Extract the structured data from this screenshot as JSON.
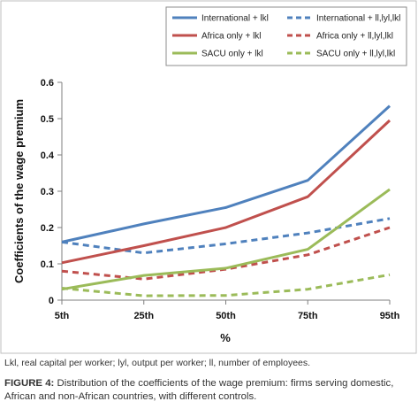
{
  "chart_data": {
    "type": "line",
    "title": "",
    "xlabel": "%",
    "ylabel": "Coefficients of the wage premium",
    "categories": [
      "5th",
      "25th",
      "50th",
      "75th",
      "95th"
    ],
    "ylim": [
      0,
      0.6
    ],
    "yticks": [
      "0",
      "0.1",
      "0.2",
      "0.3",
      "0.4",
      "0.5",
      "0.6"
    ],
    "ytick_values": [
      0,
      0.1,
      0.2,
      0.3,
      0.4,
      0.5,
      0.6
    ],
    "grid": false,
    "legend_position": "top-right",
    "series": [
      {
        "name": "International + lkl",
        "color": "#4f81bd",
        "dashed": false,
        "values": [
          0.16,
          0.21,
          0.255,
          0.33,
          0.535
        ]
      },
      {
        "name": "International + ll,lyl,lkl",
        "color": "#4f81bd",
        "dashed": true,
        "values": [
          0.16,
          0.13,
          0.155,
          0.185,
          0.225
        ]
      },
      {
        "name": "Africa only + lkl",
        "color": "#c0504d",
        "dashed": false,
        "values": [
          0.103,
          0.15,
          0.2,
          0.285,
          0.495
        ]
      },
      {
        "name": "Africa only + ll,lyl,lkl",
        "color": "#c0504d",
        "dashed": true,
        "values": [
          0.08,
          0.058,
          0.085,
          0.125,
          0.2
        ]
      },
      {
        "name": "SACU only + lkl",
        "color": "#9bbb59",
        "dashed": false,
        "values": [
          0.03,
          0.068,
          0.088,
          0.14,
          0.305
        ]
      },
      {
        "name": "SACU only + ll,lyl,lkl",
        "color": "#9bbb59",
        "dashed": true,
        "values": [
          0.033,
          0.012,
          0.013,
          0.03,
          0.07
        ]
      }
    ]
  },
  "footnote": "Lkl, real capital per worker; lyl, output per worker; ll, number of employees.",
  "caption": {
    "label": "FIGURE 4:",
    "text": "Distribution of the coefficients of the wage premium: firms serving domestic, African and non-African countries, with different controls."
  }
}
